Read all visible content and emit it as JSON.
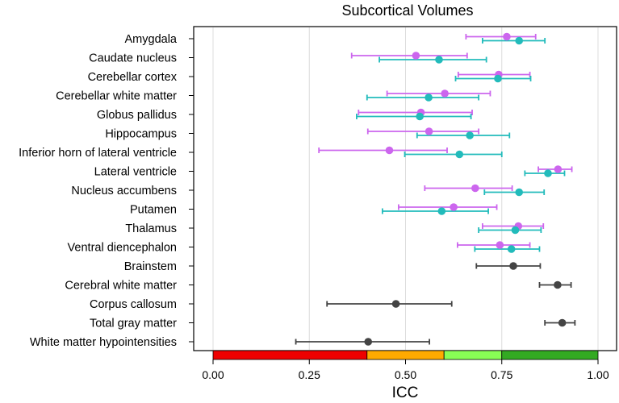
{
  "chart_data": {
    "type": "scatter",
    "subtype": "dot-and-interval (ICC with confidence intervals)",
    "title": "Subcortical Volumes",
    "xlabel": "ICC",
    "ylabel": "",
    "xlim": [
      0,
      1
    ],
    "x_ticks": [
      "0.00",
      "0.25",
      "0.50",
      "0.75",
      "1.00"
    ],
    "x_tick_values": [
      0,
      0.25,
      0.5,
      0.75,
      1.0
    ],
    "grid": "vertical lines at ticks",
    "categories": [
      "Amygdala",
      "Caudate nucleus",
      "Cerebellar cortex",
      "Cerebellar white matter",
      "Globus pallidus",
      "Hippocampus",
      "Inferior horn of lateral ventricle",
      "Lateral ventricle",
      "Nucleus accumbens",
      "Putamen",
      "Thalamus",
      "Ventral diencephalon",
      "Brainstem",
      "Cerebral white matter",
      "Corpus callosum",
      "Total gray matter",
      "White matter hypointensities"
    ],
    "series": [
      {
        "name": "series-purple",
        "color": "#cc66ee",
        "points": [
          {
            "category": "Amygdala",
            "value": 0.763,
            "lower": 0.657,
            "upper": 0.838
          },
          {
            "category": "Caudate nucleus",
            "value": 0.527,
            "lower": 0.36,
            "upper": 0.66
          },
          {
            "category": "Cerebellar cortex",
            "value": 0.742,
            "lower": 0.637,
            "upper": 0.823
          },
          {
            "category": "Cerebellar white matter",
            "value": 0.602,
            "lower": 0.452,
            "upper": 0.72
          },
          {
            "category": "Globus pallidus",
            "value": 0.54,
            "lower": 0.378,
            "upper": 0.673
          },
          {
            "category": "Hippocampus",
            "value": 0.561,
            "lower": 0.402,
            "upper": 0.69
          },
          {
            "category": "Inferior horn of lateral ventricle",
            "value": 0.458,
            "lower": 0.275,
            "upper": 0.608
          },
          {
            "category": "Lateral ventricle",
            "value": 0.896,
            "lower": 0.845,
            "upper": 0.932
          },
          {
            "category": "Nucleus accumbens",
            "value": 0.681,
            "lower": 0.55,
            "upper": 0.777
          },
          {
            "category": "Putamen",
            "value": 0.625,
            "lower": 0.482,
            "upper": 0.737
          },
          {
            "category": "Thalamus",
            "value": 0.793,
            "lower": 0.7,
            "upper": 0.858
          },
          {
            "category": "Ventral diencephalon",
            "value": 0.745,
            "lower": 0.635,
            "upper": 0.823
          }
        ]
      },
      {
        "name": "series-teal",
        "color": "#22bbbb",
        "points": [
          {
            "category": "Amygdala",
            "value": 0.795,
            "lower": 0.7,
            "upper": 0.862
          },
          {
            "category": "Caudate nucleus",
            "value": 0.587,
            "lower": 0.432,
            "upper": 0.71
          },
          {
            "category": "Cerebellar cortex",
            "value": 0.74,
            "lower": 0.63,
            "upper": 0.825
          },
          {
            "category": "Cerebellar white matter",
            "value": 0.56,
            "lower": 0.4,
            "upper": 0.69
          },
          {
            "category": "Globus pallidus",
            "value": 0.537,
            "lower": 0.373,
            "upper": 0.67
          },
          {
            "category": "Hippocampus",
            "value": 0.667,
            "lower": 0.53,
            "upper": 0.77
          },
          {
            "category": "Inferior horn of lateral ventricle",
            "value": 0.64,
            "lower": 0.498,
            "upper": 0.75
          },
          {
            "category": "Lateral ventricle",
            "value": 0.87,
            "lower": 0.81,
            "upper": 0.913
          },
          {
            "category": "Nucleus accumbens",
            "value": 0.795,
            "lower": 0.705,
            "upper": 0.86
          },
          {
            "category": "Putamen",
            "value": 0.594,
            "lower": 0.44,
            "upper": 0.715
          },
          {
            "category": "Thalamus",
            "value": 0.785,
            "lower": 0.69,
            "upper": 0.852
          },
          {
            "category": "Ventral diencephalon",
            "value": 0.775,
            "lower": 0.68,
            "upper": 0.848
          }
        ]
      },
      {
        "name": "series-gray",
        "color": "#444444",
        "points": [
          {
            "category": "Brainstem",
            "value": 0.78,
            "lower": 0.684,
            "upper": 0.85
          },
          {
            "category": "Cerebral white matter",
            "value": 0.895,
            "lower": 0.848,
            "upper": 0.93
          },
          {
            "category": "Corpus callosum",
            "value": 0.475,
            "lower": 0.296,
            "upper": 0.62
          },
          {
            "category": "Total gray matter",
            "value": 0.907,
            "lower": 0.862,
            "upper": 0.94
          },
          {
            "category": "White matter hypointensities",
            "value": 0.403,
            "lower": 0.215,
            "upper": 0.562
          }
        ]
      }
    ],
    "color_bands": [
      {
        "from": 0.0,
        "to": 0.4,
        "color": "#ee0000"
      },
      {
        "from": 0.4,
        "to": 0.6,
        "color": "#ffaa00"
      },
      {
        "from": 0.6,
        "to": 0.75,
        "color": "#88ff55"
      },
      {
        "from": 0.75,
        "to": 1.0,
        "color": "#33aa22"
      }
    ]
  }
}
